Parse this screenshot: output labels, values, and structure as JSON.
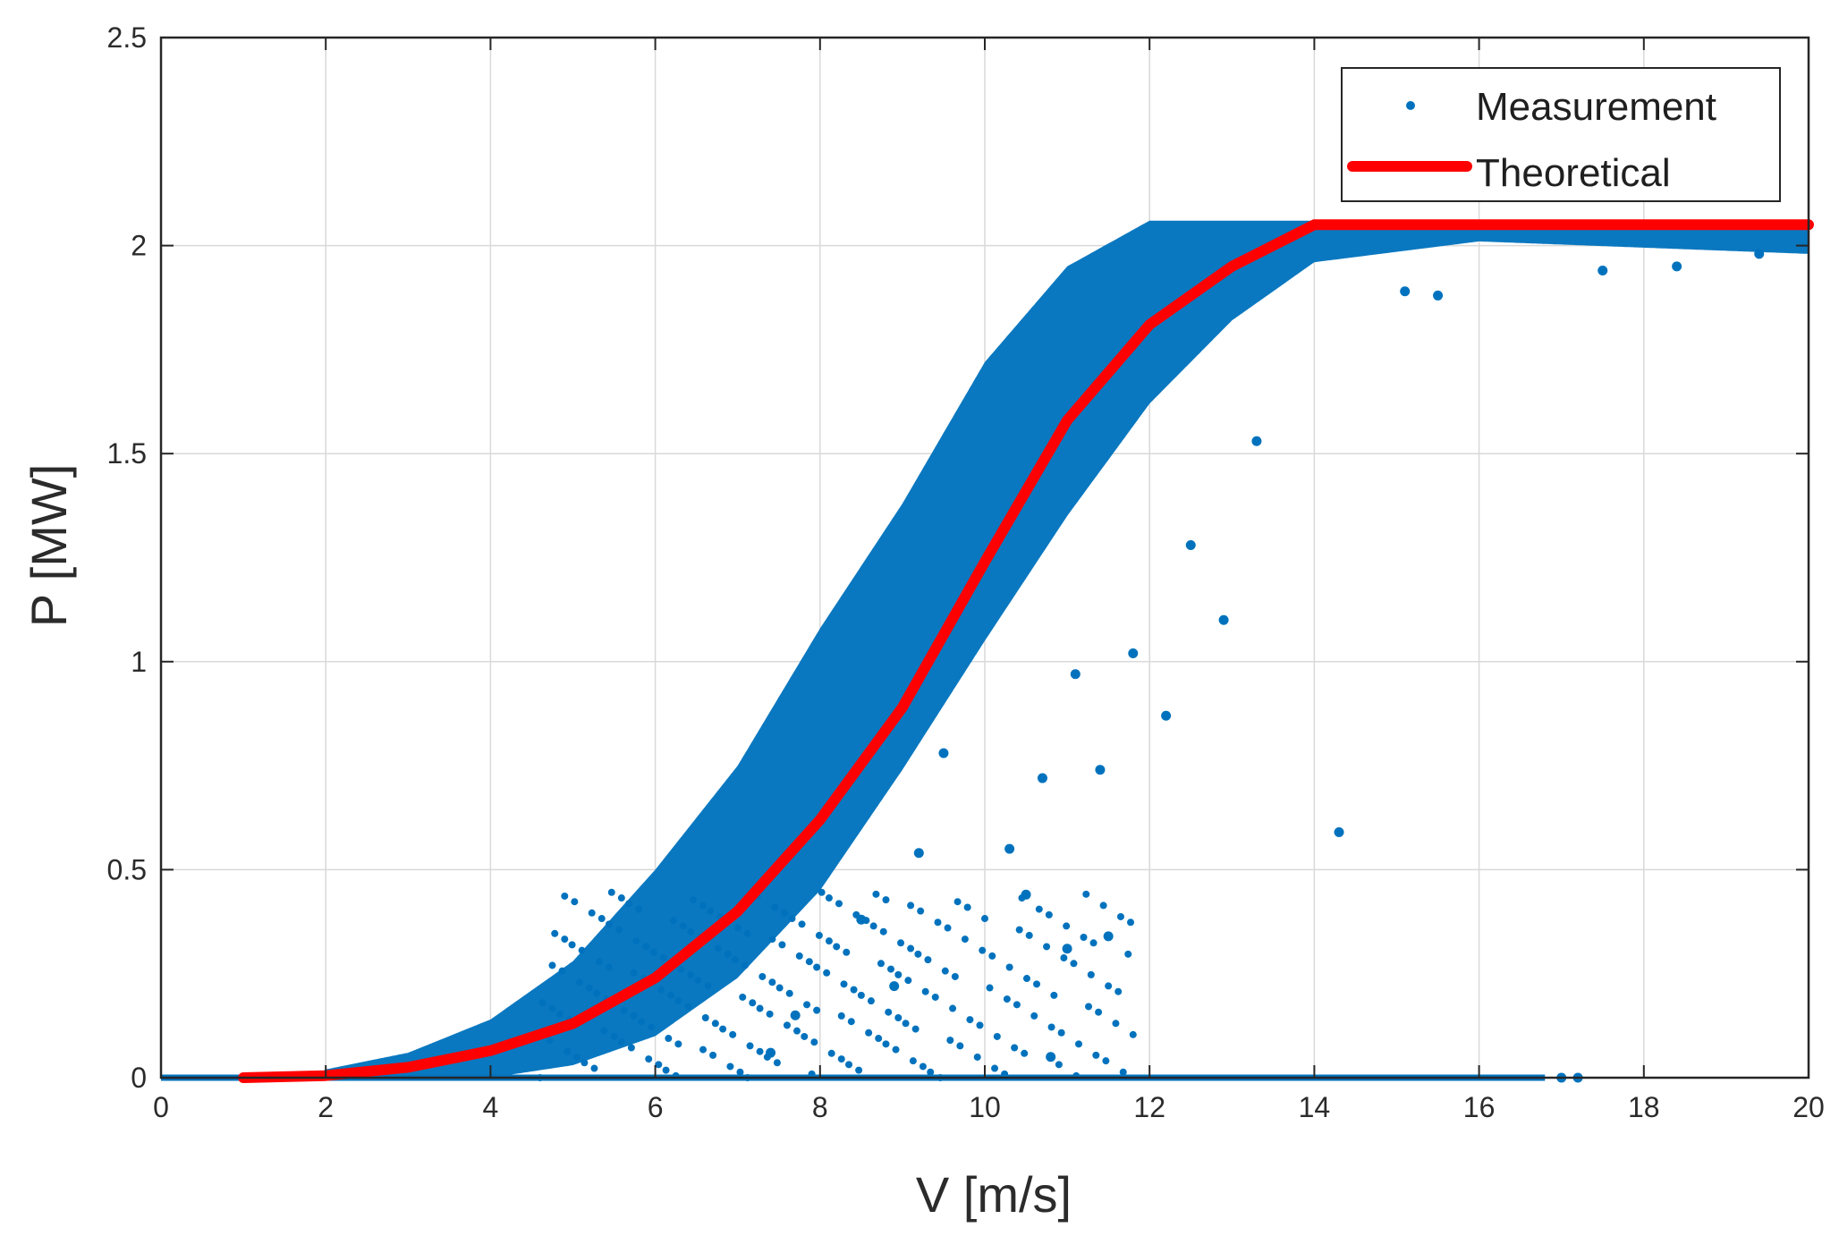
{
  "chart_data": {
    "type": "scatter",
    "title": "",
    "xlabel": "V [m/s]",
    "ylabel": "P [MW]",
    "xlim": [
      0,
      20
    ],
    "ylim": [
      0,
      2.5
    ],
    "grid": true,
    "legend_position": "top-right",
    "x_ticks": [
      "0",
      "2",
      "4",
      "6",
      "8",
      "10",
      "12",
      "14",
      "16",
      "18",
      "20"
    ],
    "y_ticks": [
      "0",
      "0.5",
      "1",
      "1.5",
      "2",
      "2.5"
    ],
    "series": [
      {
        "name": "Measurement",
        "kind": "scatter",
        "color": "#0072BD",
        "description": "Dense cloud of measured wind turbine power points; cluster follows the theoretical curve with wider spread in mid speeds",
        "envelope_samples": [
          {
            "v": 2.0,
            "p_low": 0.0,
            "p_high": 0.02
          },
          {
            "v": 3.0,
            "p_low": 0.0,
            "p_high": 0.06
          },
          {
            "v": 4.0,
            "p_low": 0.0,
            "p_high": 0.14
          },
          {
            "v": 5.0,
            "p_low": 0.03,
            "p_high": 0.28
          },
          {
            "v": 6.0,
            "p_low": 0.1,
            "p_high": 0.5
          },
          {
            "v": 7.0,
            "p_low": 0.24,
            "p_high": 0.75
          },
          {
            "v": 8.0,
            "p_low": 0.45,
            "p_high": 1.08
          },
          {
            "v": 9.0,
            "p_low": 0.74,
            "p_high": 1.38
          },
          {
            "v": 10.0,
            "p_low": 1.05,
            "p_high": 1.72
          },
          {
            "v": 11.0,
            "p_low": 1.35,
            "p_high": 1.95
          },
          {
            "v": 12.0,
            "p_low": 1.62,
            "p_high": 2.06
          },
          {
            "v": 13.0,
            "p_low": 1.82,
            "p_high": 2.06
          },
          {
            "v": 14.0,
            "p_low": 1.96,
            "p_high": 2.06
          },
          {
            "v": 16.0,
            "p_low": 2.01,
            "p_high": 2.06
          },
          {
            "v": 20.0,
            "p_low": 1.98,
            "p_high": 2.06
          }
        ],
        "zero_line": {
          "from_v": 0.0,
          "to_v": 16.8,
          "p": 0.0
        },
        "outliers": [
          {
            "v": 14.3,
            "p": 0.59
          },
          {
            "v": 12.9,
            "p": 1.1
          },
          {
            "v": 13.3,
            "p": 1.53
          },
          {
            "v": 12.5,
            "p": 1.28
          },
          {
            "v": 11.8,
            "p": 1.02
          },
          {
            "v": 12.2,
            "p": 0.87
          },
          {
            "v": 11.1,
            "p": 0.97
          },
          {
            "v": 11.4,
            "p": 0.74
          },
          {
            "v": 10.7,
            "p": 0.72
          },
          {
            "v": 10.3,
            "p": 0.55
          },
          {
            "v": 10.5,
            "p": 0.44
          },
          {
            "v": 11.5,
            "p": 0.34
          },
          {
            "v": 11.0,
            "p": 0.31
          },
          {
            "v": 10.8,
            "p": 0.05
          },
          {
            "v": 9.5,
            "p": 0.78
          },
          {
            "v": 9.2,
            "p": 0.54
          },
          {
            "v": 8.5,
            "p": 0.38
          },
          {
            "v": 8.9,
            "p": 0.22
          },
          {
            "v": 7.7,
            "p": 0.15
          },
          {
            "v": 7.4,
            "p": 0.06
          },
          {
            "v": 15.1,
            "p": 1.89
          },
          {
            "v": 15.5,
            "p": 1.88
          },
          {
            "v": 17.5,
            "p": 1.94
          },
          {
            "v": 18.4,
            "p": 1.95
          },
          {
            "v": 19.4,
            "p": 1.98
          },
          {
            "v": 17.0,
            "p": 0.0
          },
          {
            "v": 17.2,
            "p": 0.0
          }
        ]
      },
      {
        "name": "Theoretical",
        "kind": "line",
        "color": "#FF0000",
        "points": [
          {
            "x": 1.0,
            "y": 0.0
          },
          {
            "x": 2.0,
            "y": 0.005
          },
          {
            "x": 3.0,
            "y": 0.025
          },
          {
            "x": 4.0,
            "y": 0.065
          },
          {
            "x": 5.0,
            "y": 0.13
          },
          {
            "x": 6.0,
            "y": 0.24
          },
          {
            "x": 7.0,
            "y": 0.4
          },
          {
            "x": 8.0,
            "y": 0.62
          },
          {
            "x": 9.0,
            "y": 0.89
          },
          {
            "x": 10.0,
            "y": 1.24
          },
          {
            "x": 11.0,
            "y": 1.58
          },
          {
            "x": 12.0,
            "y": 1.81
          },
          {
            "x": 13.0,
            "y": 1.95
          },
          {
            "x": 14.0,
            "y": 2.05
          },
          {
            "x": 20.0,
            "y": 2.05
          }
        ]
      }
    ]
  }
}
